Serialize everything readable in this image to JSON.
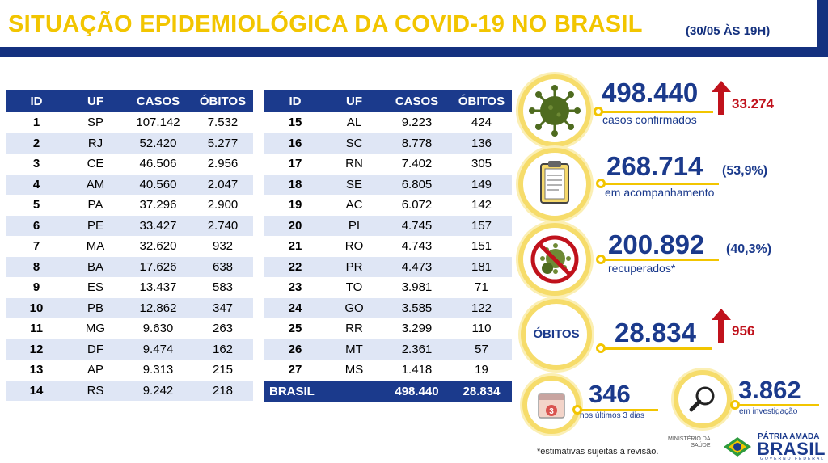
{
  "header": {
    "title": "SITUAÇÃO EPIDEMIOLÓGICA DA COVID-19 NO BRASIL",
    "date": "(30/05 ÀS 19H)"
  },
  "table": {
    "columns": [
      "ID",
      "UF",
      "CASOS",
      "ÓBITOS"
    ],
    "left_rows": [
      [
        "1",
        "SP",
        "107.142",
        "7.532"
      ],
      [
        "2",
        "RJ",
        "52.420",
        "5.277"
      ],
      [
        "3",
        "CE",
        "46.506",
        "2.956"
      ],
      [
        "4",
        "AM",
        "40.560",
        "2.047"
      ],
      [
        "5",
        "PA",
        "37.296",
        "2.900"
      ],
      [
        "6",
        "PE",
        "33.427",
        "2.740"
      ],
      [
        "7",
        "MA",
        "32.620",
        "932"
      ],
      [
        "8",
        "BA",
        "17.626",
        "638"
      ],
      [
        "9",
        "ES",
        "13.437",
        "583"
      ],
      [
        "10",
        "PB",
        "12.862",
        "347"
      ],
      [
        "11",
        "MG",
        "9.630",
        "263"
      ],
      [
        "12",
        "DF",
        "9.474",
        "162"
      ],
      [
        "13",
        "AP",
        "9.313",
        "215"
      ],
      [
        "14",
        "RS",
        "9.242",
        "218"
      ]
    ],
    "right_rows": [
      [
        "15",
        "AL",
        "9.223",
        "424"
      ],
      [
        "16",
        "SC",
        "8.778",
        "136"
      ],
      [
        "17",
        "RN",
        "7.402",
        "305"
      ],
      [
        "18",
        "SE",
        "6.805",
        "149"
      ],
      [
        "19",
        "AC",
        "6.072",
        "142"
      ],
      [
        "20",
        "PI",
        "4.745",
        "157"
      ],
      [
        "21",
        "RO",
        "4.743",
        "151"
      ],
      [
        "22",
        "PR",
        "4.473",
        "181"
      ],
      [
        "23",
        "TO",
        "3.981",
        "71"
      ],
      [
        "24",
        "GO",
        "3.585",
        "122"
      ],
      [
        "25",
        "RR",
        "3.299",
        "110"
      ],
      [
        "26",
        "MT",
        "2.361",
        "57"
      ],
      [
        "27",
        "MS",
        "1.418",
        "19"
      ]
    ],
    "total": {
      "label": "BRASIL",
      "casos": "498.440",
      "obitos": "28.834"
    }
  },
  "stats": {
    "confirmed": {
      "value": "498.440",
      "label": "casos confirmados",
      "delta": "33.274",
      "icon": "virus-icon"
    },
    "monitoring": {
      "value": "268.714",
      "pct": "(53,9%)",
      "label": "em acompanhamento",
      "icon": "clipboard-icon"
    },
    "recovered": {
      "value": "200.892",
      "pct": "(40,3%)",
      "label": "recuperados*",
      "icon": "no-virus-icon"
    },
    "deaths": {
      "badge": "ÓBITOS",
      "value": "28.834",
      "delta": "956"
    },
    "recent": {
      "value": "346",
      "label": "nos últimos 3 dias",
      "calendar_number": "3",
      "icon": "calendar-icon"
    },
    "investigation": {
      "value": "3.862",
      "label": "em investigação",
      "icon": "magnifier-icon"
    }
  },
  "footer": {
    "note": "*estimativas sujeitas à revisão.",
    "ministry_line1": "MINISTÉRIO DA",
    "ministry_line2": "SAÚDE",
    "brand_top": "PÁTRIA AMADA",
    "brand_main": "BRASIL",
    "brand_sub": "GOVERNO FEDERAL"
  },
  "colors": {
    "navy": "#1b3a8c",
    "yellow": "#f2c500",
    "red": "#c0121c",
    "row_alt": "#dfe6f5"
  }
}
